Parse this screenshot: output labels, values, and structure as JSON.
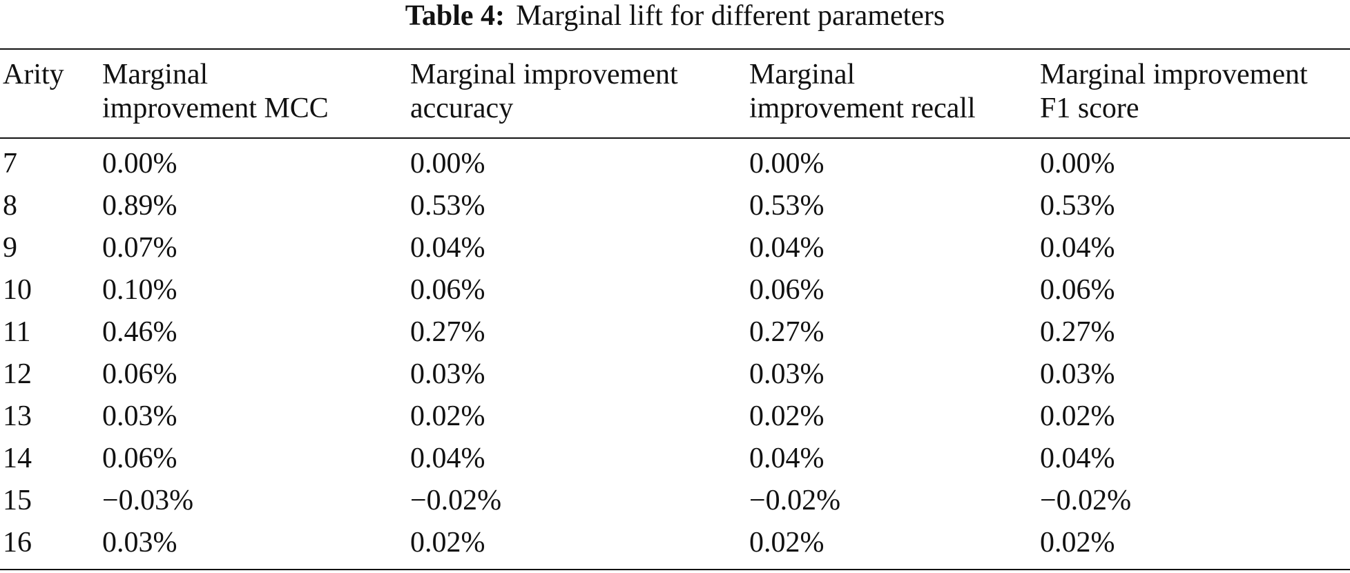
{
  "caption": {
    "label": "Table 4:",
    "text": "Marginal lift for different parameters"
  },
  "headers": [
    [
      "Arity"
    ],
    [
      "Marginal",
      "improvement MCC"
    ],
    [
      "Marginal improvement",
      "accuracy"
    ],
    [
      "Marginal",
      "improvement recall"
    ],
    [
      "Marginal improvement",
      "F1 score"
    ]
  ],
  "rows": [
    [
      "7",
      "0.00%",
      "0.00%",
      "0.00%",
      "0.00%"
    ],
    [
      "8",
      "0.89%",
      "0.53%",
      "0.53%",
      "0.53%"
    ],
    [
      "9",
      "0.07%",
      "0.04%",
      "0.04%",
      "0.04%"
    ],
    [
      "10",
      "0.10%",
      "0.06%",
      "0.06%",
      "0.06%"
    ],
    [
      "11",
      "0.46%",
      "0.27%",
      "0.27%",
      "0.27%"
    ],
    [
      "12",
      "0.06%",
      "0.03%",
      "0.03%",
      "0.03%"
    ],
    [
      "13",
      "0.03%",
      "0.02%",
      "0.02%",
      "0.02%"
    ],
    [
      "14",
      "0.06%",
      "0.04%",
      "0.04%",
      "0.04%"
    ],
    [
      "15",
      "−0.03%",
      "−0.02%",
      "−0.02%",
      "−0.02%"
    ],
    [
      "16",
      "0.03%",
      "0.02%",
      "0.02%",
      "0.02%"
    ]
  ]
}
